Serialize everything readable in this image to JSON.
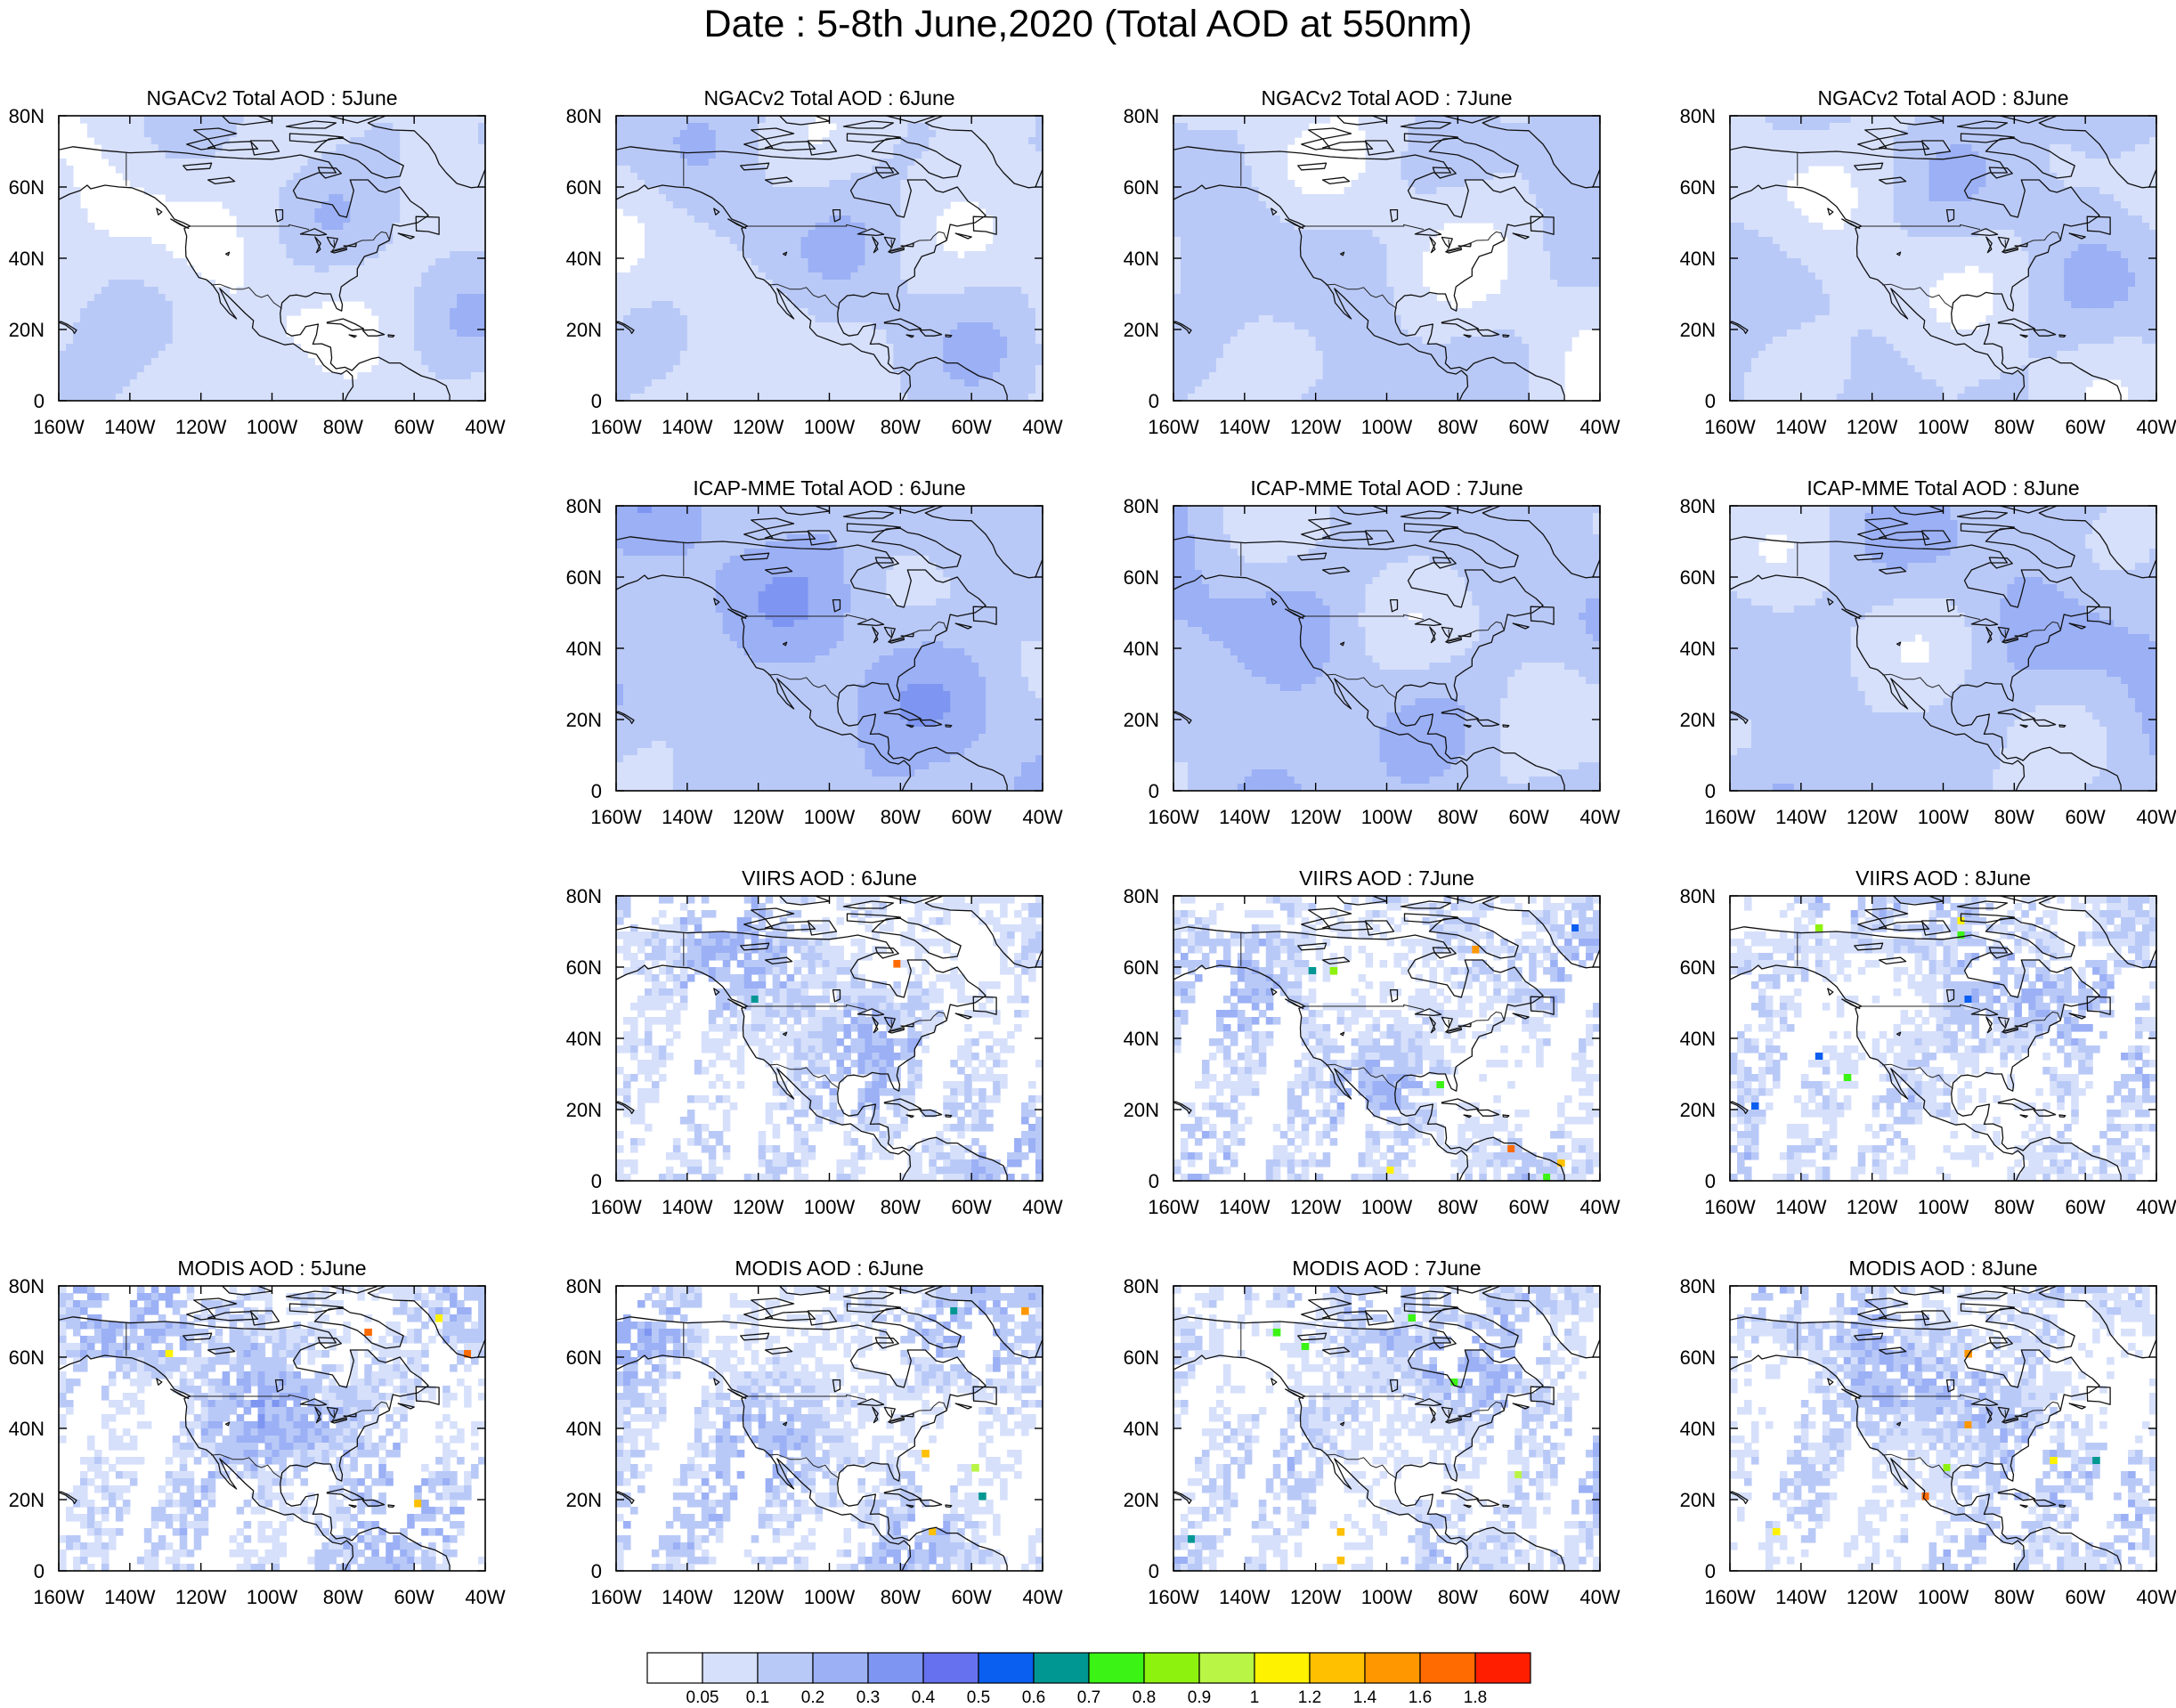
{
  "figure": {
    "title": "Date : 5-8th June,2020 (Total AOD at 550nm)"
  },
  "colors": {
    "frame": "#000000",
    "coast": "#111111",
    "border": "#222222",
    "levels": [
      "#ffffff",
      "#d6e0fb",
      "#b9c9f7",
      "#9bb0f5",
      "#7e96f1",
      "#6671ef",
      "#0a5ef0",
      "#009793",
      "#3bf314",
      "#8ef20f",
      "#b9f544",
      "#fff200",
      "#ffc000",
      "#ff9700",
      "#ff6b00",
      "#ff1f00"
    ]
  },
  "panels": [
    {
      "title": "NGACv2 Total AOD : 5June",
      "row": 0,
      "col": 0,
      "dataset": "NGACv2",
      "day": "5June",
      "style": "smooth",
      "mean_level": 1.2
    },
    {
      "title": "NGACv2 Total AOD : 6June",
      "row": 0,
      "col": 1,
      "dataset": "NGACv2",
      "day": "6June",
      "style": "smooth",
      "mean_level": 1.4
    },
    {
      "title": "NGACv2 Total AOD : 7June",
      "row": 0,
      "col": 2,
      "dataset": "NGACv2",
      "day": "7June",
      "style": "smooth",
      "mean_level": 1.4
    },
    {
      "title": "NGACv2 Total AOD : 8June",
      "row": 0,
      "col": 3,
      "dataset": "NGACv2",
      "day": "8June",
      "style": "smooth",
      "mean_level": 1.5
    },
    {
      "title": "ICAP-MME Total AOD : 6June",
      "row": 1,
      "col": 1,
      "dataset": "ICAP-MME",
      "day": "6June",
      "style": "smooth",
      "mean_level": 2.2
    },
    {
      "title": "ICAP-MME Total AOD : 7June",
      "row": 1,
      "col": 2,
      "dataset": "ICAP-MME",
      "day": "7June",
      "style": "smooth",
      "mean_level": 2.0
    },
    {
      "title": "ICAP-MME Total AOD : 8June",
      "row": 1,
      "col": 3,
      "dataset": "ICAP-MME",
      "day": "8June",
      "style": "smooth",
      "mean_level": 1.9
    },
    {
      "title": "VIIRS AOD : 6June",
      "row": 2,
      "col": 1,
      "dataset": "VIIRS",
      "day": "6June",
      "style": "swath",
      "mean_level": 1.3
    },
    {
      "title": "VIIRS AOD : 7June",
      "row": 2,
      "col": 2,
      "dataset": "VIIRS",
      "day": "7June",
      "style": "swath",
      "mean_level": 1.3
    },
    {
      "title": "VIIRS AOD : 8June",
      "row": 2,
      "col": 3,
      "dataset": "VIIRS",
      "day": "8June",
      "style": "swath",
      "mean_level": 1.3
    },
    {
      "title": "MODIS AOD : 5June",
      "row": 3,
      "col": 0,
      "dataset": "MODIS",
      "day": "5June",
      "style": "swath",
      "mean_level": 1.5
    },
    {
      "title": "MODIS AOD : 6June",
      "row": 3,
      "col": 1,
      "dataset": "MODIS",
      "day": "6June",
      "style": "swath",
      "mean_level": 1.4
    },
    {
      "title": "MODIS AOD : 7June",
      "row": 3,
      "col": 2,
      "dataset": "MODIS",
      "day": "7June",
      "style": "swath",
      "mean_level": 1.3
    },
    {
      "title": "MODIS AOD : 8June",
      "row": 3,
      "col": 3,
      "dataset": "MODIS",
      "day": "8June",
      "style": "swath",
      "mean_level": 1.3
    }
  ],
  "colorbar": {
    "labels": [
      "0.05",
      "0.1",
      "0.2",
      "0.3",
      "0.4",
      "0.5",
      "0.6",
      "0.7",
      "0.8",
      "0.9",
      "1",
      "1.2",
      "1.4",
      "1.6",
      "1.8"
    ]
  },
  "chart_data": {
    "type": "heatmap",
    "title": "Date : 5-8th June,2020 (Total AOD at 550nm)",
    "xlabel": "",
    "ylabel": "",
    "x_ticks": [
      "160W",
      "140W",
      "120W",
      "100W",
      "80W",
      "60W",
      "40W"
    ],
    "y_ticks": [
      "0",
      "20N",
      "40N",
      "60N",
      "80N"
    ],
    "xlim": [
      -160,
      -40
    ],
    "ylim": [
      0,
      80
    ],
    "color_levels": [
      0.05,
      0.1,
      0.2,
      0.3,
      0.4,
      0.5,
      0.6,
      0.7,
      0.8,
      0.9,
      1,
      1.2,
      1.4,
      1.6,
      1.8
    ],
    "grid": false,
    "legend": "bottom",
    "series": [
      {
        "name": "NGACv2 Total AOD : 5June"
      },
      {
        "name": "NGACv2 Total AOD : 6June"
      },
      {
        "name": "NGACv2 Total AOD : 7June"
      },
      {
        "name": "NGACv2 Total AOD : 8June"
      },
      {
        "name": "ICAP-MME Total AOD : 6June"
      },
      {
        "name": "ICAP-MME Total AOD : 7June"
      },
      {
        "name": "ICAP-MME Total AOD : 8June"
      },
      {
        "name": "VIIRS AOD : 6June"
      },
      {
        "name": "VIIRS AOD : 7June"
      },
      {
        "name": "VIIRS AOD : 8June"
      },
      {
        "name": "MODIS AOD : 5June"
      },
      {
        "name": "MODIS AOD : 6June"
      },
      {
        "name": "MODIS AOD : 7June"
      },
      {
        "name": "MODIS AOD : 8June"
      }
    ]
  }
}
